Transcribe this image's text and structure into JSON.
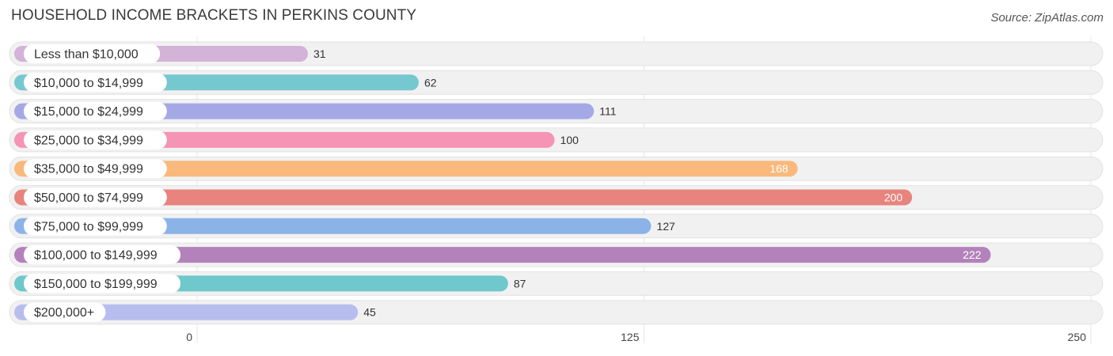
{
  "title": "HOUSEHOLD INCOME BRACKETS IN PERKINS COUNTY",
  "source": "Source: ZipAtlas.com",
  "chart_data": {
    "type": "bar",
    "orientation": "horizontal",
    "categories": [
      "Less than $10,000",
      "$10,000 to $14,999",
      "$15,000 to $24,999",
      "$25,000 to $34,999",
      "$35,000 to $49,999",
      "$50,000 to $74,999",
      "$75,000 to $99,999",
      "$100,000 to $149,999",
      "$150,000 to $199,999",
      "$200,000+"
    ],
    "values": [
      31,
      62,
      111,
      100,
      168,
      200,
      127,
      222,
      87,
      45
    ],
    "value_labels": [
      "31",
      "62",
      "111",
      "100",
      "168",
      "200",
      "127",
      "222",
      "87",
      "45"
    ],
    "colors": [
      "#d4b3d8",
      "#76c8d0",
      "#a4a9e6",
      "#f594b4",
      "#f9b97c",
      "#e8837d",
      "#8cb3e8",
      "#b482ba",
      "#6ec8cc",
      "#b8bdef"
    ],
    "xlim": [
      0,
      250
    ],
    "xticks": [
      0,
      125,
      250
    ],
    "xtick_labels": [
      "0",
      "125",
      "250"
    ],
    "grid": true,
    "legend": "none"
  }
}
